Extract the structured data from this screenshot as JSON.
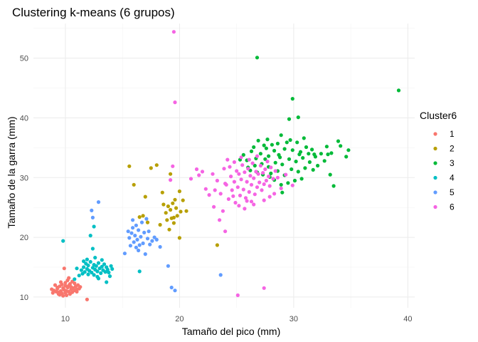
{
  "chart_data": {
    "type": "scatter",
    "title": "Clustering k-means (6 grupos)",
    "xlabel": "Tamaño del pico (mm)",
    "ylabel": "Tamaño de la garra (mm)",
    "xlim": [
      7.2,
      40.6
    ],
    "ylim": [
      8.2,
      55.8
    ],
    "xticks": [
      10,
      20,
      30,
      40
    ],
    "yticks": [
      10,
      20,
      30,
      40,
      50
    ],
    "grid": true,
    "legend": {
      "title": "Cluster6",
      "placement": "right"
    },
    "series": [
      {
        "name": "1",
        "color": "#F8766D",
        "points": [
          [
            9.0,
            11.1
          ],
          [
            9.2,
            10.9
          ],
          [
            9.3,
            11.4
          ],
          [
            9.4,
            10.8
          ],
          [
            9.5,
            11.8
          ],
          [
            9.6,
            11.0
          ],
          [
            9.7,
            12.1
          ],
          [
            9.7,
            10.6
          ],
          [
            9.8,
            11.5
          ],
          [
            9.9,
            11.2
          ],
          [
            10.0,
            10.7
          ],
          [
            10.0,
            12.4
          ],
          [
            10.1,
            11.0
          ],
          [
            10.2,
            11.6
          ],
          [
            10.3,
            11.9
          ],
          [
            10.3,
            10.9
          ],
          [
            10.4,
            12.2
          ],
          [
            10.5,
            11.3
          ],
          [
            10.6,
            10.8
          ],
          [
            10.6,
            12.6
          ],
          [
            10.7,
            11.5
          ],
          [
            10.8,
            11.1
          ],
          [
            10.9,
            11.8
          ],
          [
            11.0,
            11.3
          ],
          [
            11.1,
            12.0
          ],
          [
            11.2,
            11.4
          ],
          [
            11.3,
            11.7
          ],
          [
            8.8,
            11.3
          ],
          [
            8.9,
            10.7
          ],
          [
            9.1,
            12.0
          ],
          [
            9.5,
            10.4
          ],
          [
            9.8,
            10.2
          ],
          [
            10.1,
            10.3
          ],
          [
            10.4,
            10.5
          ],
          [
            10.2,
            12.8
          ],
          [
            9.6,
            12.5
          ],
          [
            11.0,
            10.9
          ],
          [
            9.9,
            14.8
          ],
          [
            10.3,
            13.2
          ],
          [
            11.9,
            9.6
          ],
          [
            9.4,
            10.5
          ],
          [
            10.8,
            12.3
          ],
          [
            9.3,
            11.6
          ],
          [
            10.5,
            11.7
          ],
          [
            10.0,
            11.9
          ]
        ]
      },
      {
        "name": "2",
        "color": "#B79F00",
        "points": [
          [
            16.5,
            23.4
          ],
          [
            17.0,
            26.8
          ],
          [
            17.2,
            22.5
          ],
          [
            17.5,
            31.6
          ],
          [
            18.0,
            32.1
          ],
          [
            18.3,
            22.1
          ],
          [
            18.6,
            25.5
          ],
          [
            18.8,
            24.1
          ],
          [
            18.9,
            22.9
          ],
          [
            19.0,
            25.2
          ],
          [
            19.1,
            21.3
          ],
          [
            19.2,
            24.6
          ],
          [
            19.3,
            23.2
          ],
          [
            19.4,
            25.7
          ],
          [
            19.5,
            22.4
          ],
          [
            19.6,
            26.3
          ],
          [
            19.7,
            24.9
          ],
          [
            19.8,
            23.6
          ],
          [
            20.0,
            27.7
          ],
          [
            20.1,
            24.3
          ],
          [
            20.3,
            26.2
          ],
          [
            20.6,
            24.4
          ],
          [
            20.0,
            19.9
          ],
          [
            15.6,
            31.9
          ],
          [
            16.0,
            28.8
          ],
          [
            19.2,
            30.6
          ],
          [
            16.8,
            23.6
          ],
          [
            23.3,
            18.7
          ],
          [
            19.5,
            23.3
          ],
          [
            18.5,
            27.5
          ]
        ]
      },
      {
        "name": "3",
        "color": "#00BA38",
        "points": [
          [
            26.8,
            50.1
          ],
          [
            39.2,
            44.6
          ],
          [
            29.9,
            43.2
          ],
          [
            29.6,
            39.8
          ],
          [
            30.4,
            40.1
          ],
          [
            28.9,
            37.1
          ],
          [
            28.6,
            35.7
          ],
          [
            27.7,
            36.4
          ],
          [
            33.9,
            36.1
          ],
          [
            34.8,
            34.6
          ],
          [
            34.1,
            35.3
          ],
          [
            34.6,
            33.5
          ],
          [
            33.0,
            33.9
          ],
          [
            33.3,
            34.1
          ],
          [
            32.7,
            32.8
          ],
          [
            33.2,
            30.5
          ],
          [
            33.5,
            28.6
          ],
          [
            32.4,
            34.0
          ],
          [
            31.6,
            34.7
          ],
          [
            31.1,
            35.1
          ],
          [
            30.6,
            34.3
          ],
          [
            30.3,
            35.9
          ],
          [
            29.7,
            36.3
          ],
          [
            29.2,
            34.8
          ],
          [
            28.7,
            33.8
          ],
          [
            28.3,
            34.5
          ],
          [
            27.8,
            33.6
          ],
          [
            27.4,
            35.4
          ],
          [
            27.1,
            34.0
          ],
          [
            26.7,
            33.2
          ],
          [
            26.3,
            34.4
          ],
          [
            25.9,
            32.9
          ],
          [
            25.6,
            33.8
          ],
          [
            25.3,
            33.0
          ],
          [
            26.0,
            31.7
          ],
          [
            26.6,
            32.0
          ],
          [
            27.2,
            32.3
          ],
          [
            27.8,
            31.8
          ],
          [
            28.4,
            32.5
          ],
          [
            29.0,
            32.2
          ],
          [
            29.6,
            33.1
          ],
          [
            30.2,
            32.7
          ],
          [
            30.8,
            33.3
          ],
          [
            31.4,
            32.6
          ],
          [
            31.9,
            33.5
          ],
          [
            28.0,
            30.7
          ],
          [
            28.6,
            31.1
          ],
          [
            29.2,
            30.4
          ],
          [
            29.8,
            31.4
          ],
          [
            30.4,
            31.0
          ],
          [
            31.0,
            31.6
          ],
          [
            30.7,
            29.8
          ],
          [
            30.1,
            29.5
          ],
          [
            29.5,
            29.1
          ],
          [
            28.9,
            28.8
          ],
          [
            28.3,
            29.6
          ],
          [
            27.9,
            30.1
          ],
          [
            27.3,
            30.5
          ],
          [
            26.8,
            30.9
          ],
          [
            26.2,
            31.2
          ],
          [
            26.5,
            35.1
          ],
          [
            27.6,
            34.9
          ],
          [
            28.1,
            35.5
          ],
          [
            29.4,
            35.9
          ],
          [
            30.9,
            36.6
          ],
          [
            31.3,
            34.0
          ],
          [
            31.7,
            31.3
          ],
          [
            32.1,
            32.0
          ],
          [
            29.0,
            27.5
          ],
          [
            27.5,
            33.1
          ],
          [
            28.8,
            33.4
          ],
          [
            30.5,
            33.9
          ],
          [
            29.9,
            34.6
          ],
          [
            31.8,
            33.9
          ],
          [
            32.9,
            35.2
          ],
          [
            26.9,
            36.2
          ]
        ]
      },
      {
        "name": "4",
        "color": "#00BFC4",
        "points": [
          [
            11.4,
            14.5
          ],
          [
            11.5,
            13.9
          ],
          [
            11.6,
            15.0
          ],
          [
            11.7,
            14.2
          ],
          [
            11.8,
            15.6
          ],
          [
            11.9,
            14.7
          ],
          [
            12.0,
            13.8
          ],
          [
            12.0,
            15.3
          ],
          [
            12.1,
            14.4
          ],
          [
            12.2,
            15.9
          ],
          [
            12.3,
            14.1
          ],
          [
            12.4,
            14.9
          ],
          [
            12.5,
            15.4
          ],
          [
            12.5,
            13.7
          ],
          [
            12.6,
            14.6
          ],
          [
            12.7,
            15.2
          ],
          [
            12.8,
            14.3
          ],
          [
            12.9,
            15.7
          ],
          [
            13.0,
            14.8
          ],
          [
            13.1,
            14.0
          ],
          [
            13.2,
            15.1
          ],
          [
            13.3,
            14.5
          ],
          [
            13.4,
            15.5
          ],
          [
            13.5,
            14.2
          ],
          [
            13.6,
            15.0
          ],
          [
            13.7,
            14.6
          ],
          [
            13.8,
            14.1
          ],
          [
            14.0,
            15.2
          ],
          [
            11.9,
            16.3
          ],
          [
            12.6,
            16.6
          ],
          [
            11.2,
            13.6
          ],
          [
            11.0,
            14.8
          ],
          [
            12.8,
            13.4
          ],
          [
            13.9,
            13.5
          ],
          [
            14.1,
            14.7
          ],
          [
            12.4,
            18.1
          ],
          [
            12.2,
            20.3
          ],
          [
            12.5,
            21.8
          ],
          [
            9.8,
            19.4
          ],
          [
            10.8,
            13.0
          ],
          [
            13.6,
            12.5
          ],
          [
            16.5,
            14.3
          ],
          [
            12.9,
            13.1
          ],
          [
            11.6,
            16.0
          ],
          [
            13.2,
            16.2
          ]
        ]
      },
      {
        "name": "5",
        "color": "#619CFF",
        "points": [
          [
            12.9,
            25.9
          ],
          [
            12.3,
            24.5
          ],
          [
            12.4,
            23.3
          ],
          [
            15.2,
            17.3
          ],
          [
            15.5,
            21.0
          ],
          [
            15.6,
            19.9
          ],
          [
            15.8,
            20.7
          ],
          [
            15.9,
            21.6
          ],
          [
            16.0,
            19.2
          ],
          [
            16.1,
            20.3
          ],
          [
            16.2,
            22.0
          ],
          [
            16.3,
            19.6
          ],
          [
            16.4,
            21.2
          ],
          [
            16.5,
            18.7
          ],
          [
            16.6,
            20.1
          ],
          [
            16.7,
            22.5
          ],
          [
            16.8,
            19.0
          ],
          [
            16.9,
            20.8
          ],
          [
            17.1,
            23.1
          ],
          [
            17.2,
            19.8
          ],
          [
            17.4,
            18.8
          ],
          [
            17.6,
            19.4
          ],
          [
            17.8,
            20.0
          ],
          [
            18.0,
            19.6
          ],
          [
            18.3,
            18.4
          ],
          [
            16.4,
            17.8
          ],
          [
            15.9,
            22.9
          ],
          [
            17.0,
            17.2
          ],
          [
            19.0,
            15.2
          ],
          [
            19.3,
            11.6
          ],
          [
            19.6,
            11.1
          ],
          [
            23.6,
            13.7
          ],
          [
            16.2,
            18.3
          ],
          [
            15.7,
            18.6
          ],
          [
            17.3,
            21.0
          ]
        ]
      },
      {
        "name": "6",
        "color": "#F564E3",
        "points": [
          [
            19.5,
            54.4
          ],
          [
            19.6,
            42.6
          ],
          [
            19.4,
            31.9
          ],
          [
            21.0,
            29.8
          ],
          [
            21.7,
            30.4
          ],
          [
            22.3,
            28.1
          ],
          [
            22.9,
            30.6
          ],
          [
            23.3,
            29.5
          ],
          [
            23.6,
            27.3
          ],
          [
            23.9,
            31.5
          ],
          [
            24.1,
            28.8
          ],
          [
            24.3,
            26.4
          ],
          [
            24.5,
            30.2
          ],
          [
            24.6,
            27.9
          ],
          [
            24.8,
            29.3
          ],
          [
            24.9,
            25.8
          ],
          [
            25.0,
            31.1
          ],
          [
            25.1,
            28.4
          ],
          [
            25.2,
            30.6
          ],
          [
            25.3,
            27.0
          ],
          [
            25.4,
            29.7
          ],
          [
            25.5,
            32.1
          ],
          [
            25.6,
            28.0
          ],
          [
            25.7,
            30.9
          ],
          [
            25.8,
            26.6
          ],
          [
            25.9,
            29.3
          ],
          [
            26.0,
            31.5
          ],
          [
            26.1,
            27.6
          ],
          [
            26.2,
            30.3
          ],
          [
            26.3,
            28.8
          ],
          [
            26.4,
            32.4
          ],
          [
            26.5,
            29.9
          ],
          [
            26.6,
            27.2
          ],
          [
            26.7,
            31.0
          ],
          [
            26.8,
            28.4
          ],
          [
            26.9,
            30.6
          ],
          [
            27.0,
            29.2
          ],
          [
            27.1,
            32.0
          ],
          [
            27.2,
            27.9
          ],
          [
            27.3,
            30.8
          ],
          [
            27.4,
            28.9
          ],
          [
            27.5,
            31.4
          ],
          [
            27.6,
            29.5
          ],
          [
            27.7,
            32.7
          ],
          [
            27.8,
            30.2
          ],
          [
            27.9,
            28.6
          ],
          [
            28.0,
            31.7
          ],
          [
            28.2,
            29.8
          ],
          [
            28.4,
            31.1
          ],
          [
            28.6,
            30.0
          ],
          [
            24.0,
            29.0
          ],
          [
            24.4,
            31.8
          ],
          [
            24.7,
            26.9
          ],
          [
            25.2,
            25.3
          ],
          [
            25.7,
            24.8
          ],
          [
            26.3,
            26.0
          ],
          [
            23.8,
            24.4
          ],
          [
            23.5,
            22.9
          ],
          [
            23.0,
            25.1
          ],
          [
            24.2,
            33.0
          ],
          [
            24.8,
            32.6
          ],
          [
            25.4,
            33.4
          ],
          [
            26.1,
            33.0
          ],
          [
            22.6,
            27.1
          ],
          [
            23.1,
            27.9
          ],
          [
            22.0,
            31.0
          ],
          [
            19.2,
            29.6
          ],
          [
            21.5,
            31.4
          ],
          [
            24.0,
            21.0
          ],
          [
            25.1,
            10.3
          ],
          [
            27.4,
            11.5
          ],
          [
            26.5,
            25.5
          ],
          [
            28.9,
            28.2
          ],
          [
            29.3,
            30.5
          ],
          [
            29.9,
            28.7
          ],
          [
            27.9,
            26.8
          ],
          [
            25.9,
            26.1
          ],
          [
            26.8,
            33.6
          ],
          [
            27.4,
            26.2
          ],
          [
            28.3,
            27.3
          ]
        ]
      }
    ]
  }
}
